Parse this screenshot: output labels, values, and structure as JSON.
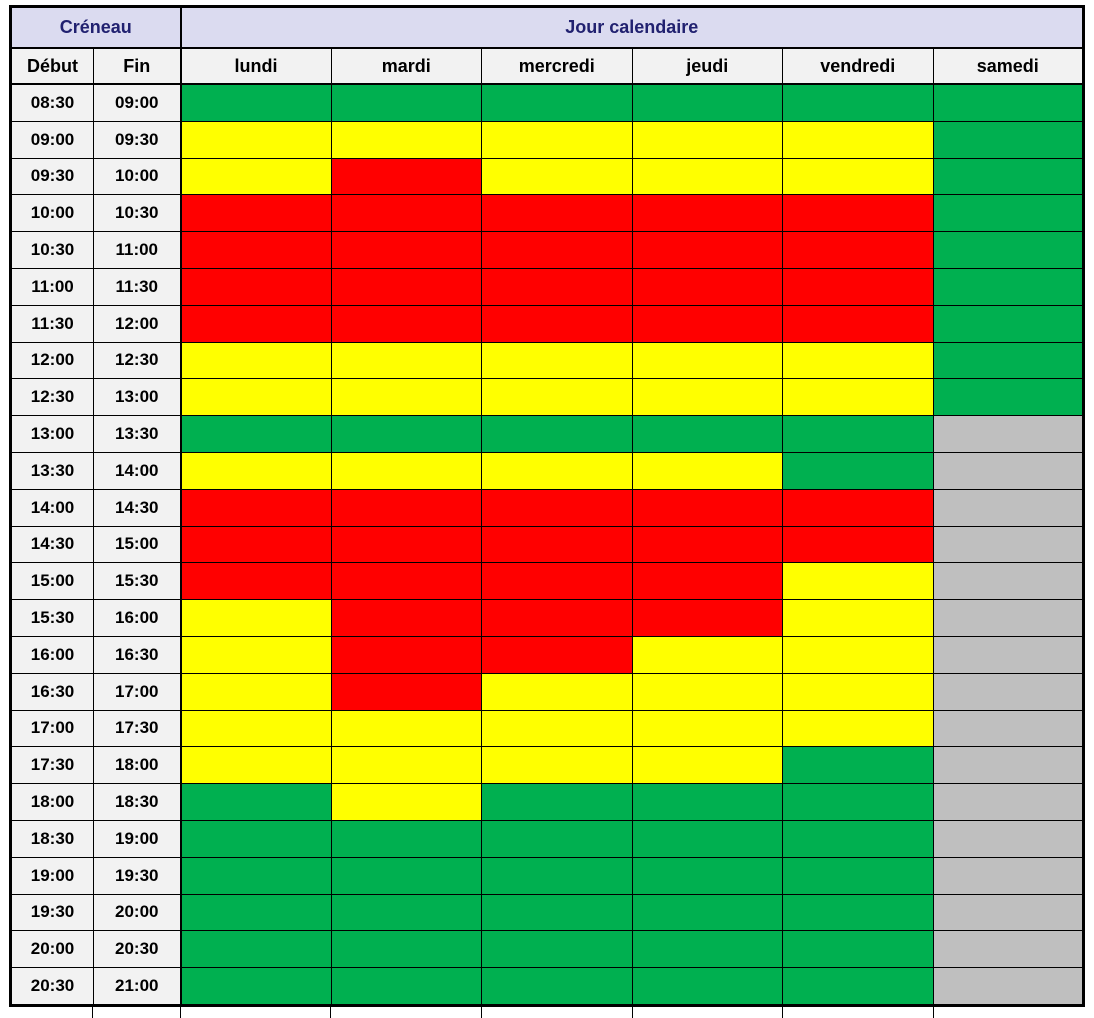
{
  "header": {
    "creneau_label": "Créneau",
    "jour_label": "Jour calendaire",
    "debut_label": "Début",
    "fin_label": "Fin"
  },
  "colors": {
    "header_group_bg": "#DBDBF0",
    "header_group_text": "#212170",
    "subheader_bg": "#F2F2F2",
    "grid_line": "#000000",
    "green": "#00B050",
    "yellow": "#FFFF00",
    "red": "#FF0000",
    "gray": "#BFBFBF"
  },
  "chart_data": {
    "type": "heatmap",
    "columns": [
      "lundi",
      "mardi",
      "mercredi",
      "jeudi",
      "vendredi",
      "samedi"
    ],
    "row_header_columns": [
      "Début",
      "Fin"
    ],
    "cell_states": {
      "green": "#00B050",
      "yellow": "#FFFF00",
      "red": "#FF0000",
      "gray": "#BFBFBF"
    },
    "rows": [
      {
        "start": "08:30",
        "end": "09:00",
        "cells": [
          "green",
          "green",
          "green",
          "green",
          "green",
          "green"
        ]
      },
      {
        "start": "09:00",
        "end": "09:30",
        "cells": [
          "yellow",
          "yellow",
          "yellow",
          "yellow",
          "yellow",
          "green"
        ]
      },
      {
        "start": "09:30",
        "end": "10:00",
        "cells": [
          "yellow",
          "red",
          "yellow",
          "yellow",
          "yellow",
          "green"
        ]
      },
      {
        "start": "10:00",
        "end": "10:30",
        "cells": [
          "red",
          "red",
          "red",
          "red",
          "red",
          "green"
        ]
      },
      {
        "start": "10:30",
        "end": "11:00",
        "cells": [
          "red",
          "red",
          "red",
          "red",
          "red",
          "green"
        ]
      },
      {
        "start": "11:00",
        "end": "11:30",
        "cells": [
          "red",
          "red",
          "red",
          "red",
          "red",
          "green"
        ]
      },
      {
        "start": "11:30",
        "end": "12:00",
        "cells": [
          "red",
          "red",
          "red",
          "red",
          "red",
          "green"
        ]
      },
      {
        "start": "12:00",
        "end": "12:30",
        "cells": [
          "yellow",
          "yellow",
          "yellow",
          "yellow",
          "yellow",
          "green"
        ]
      },
      {
        "start": "12:30",
        "end": "13:00",
        "cells": [
          "yellow",
          "yellow",
          "yellow",
          "yellow",
          "yellow",
          "green"
        ]
      },
      {
        "start": "13:00",
        "end": "13:30",
        "cells": [
          "green",
          "green",
          "green",
          "green",
          "green",
          "gray"
        ]
      },
      {
        "start": "13:30",
        "end": "14:00",
        "cells": [
          "yellow",
          "yellow",
          "yellow",
          "yellow",
          "green",
          "gray"
        ]
      },
      {
        "start": "14:00",
        "end": "14:30",
        "cells": [
          "red",
          "red",
          "red",
          "red",
          "red",
          "gray"
        ]
      },
      {
        "start": "14:30",
        "end": "15:00",
        "cells": [
          "red",
          "red",
          "red",
          "red",
          "red",
          "gray"
        ]
      },
      {
        "start": "15:00",
        "end": "15:30",
        "cells": [
          "red",
          "red",
          "red",
          "red",
          "yellow",
          "gray"
        ]
      },
      {
        "start": "15:30",
        "end": "16:00",
        "cells": [
          "yellow",
          "red",
          "red",
          "red",
          "yellow",
          "gray"
        ]
      },
      {
        "start": "16:00",
        "end": "16:30",
        "cells": [
          "yellow",
          "red",
          "red",
          "yellow",
          "yellow",
          "gray"
        ]
      },
      {
        "start": "16:30",
        "end": "17:00",
        "cells": [
          "yellow",
          "red",
          "yellow",
          "yellow",
          "yellow",
          "gray"
        ]
      },
      {
        "start": "17:00",
        "end": "17:30",
        "cells": [
          "yellow",
          "yellow",
          "yellow",
          "yellow",
          "yellow",
          "gray"
        ]
      },
      {
        "start": "17:30",
        "end": "18:00",
        "cells": [
          "yellow",
          "yellow",
          "yellow",
          "yellow",
          "green",
          "gray"
        ]
      },
      {
        "start": "18:00",
        "end": "18:30",
        "cells": [
          "green",
          "yellow",
          "green",
          "green",
          "green",
          "gray"
        ]
      },
      {
        "start": "18:30",
        "end": "19:00",
        "cells": [
          "green",
          "green",
          "green",
          "green",
          "green",
          "gray"
        ]
      },
      {
        "start": "19:00",
        "end": "19:30",
        "cells": [
          "green",
          "green",
          "green",
          "green",
          "green",
          "gray"
        ]
      },
      {
        "start": "19:30",
        "end": "20:00",
        "cells": [
          "green",
          "green",
          "green",
          "green",
          "green",
          "gray"
        ]
      },
      {
        "start": "20:00",
        "end": "20:30",
        "cells": [
          "green",
          "green",
          "green",
          "green",
          "green",
          "gray"
        ]
      },
      {
        "start": "20:30",
        "end": "21:00",
        "cells": [
          "green",
          "green",
          "green",
          "green",
          "green",
          "gray"
        ]
      }
    ]
  }
}
